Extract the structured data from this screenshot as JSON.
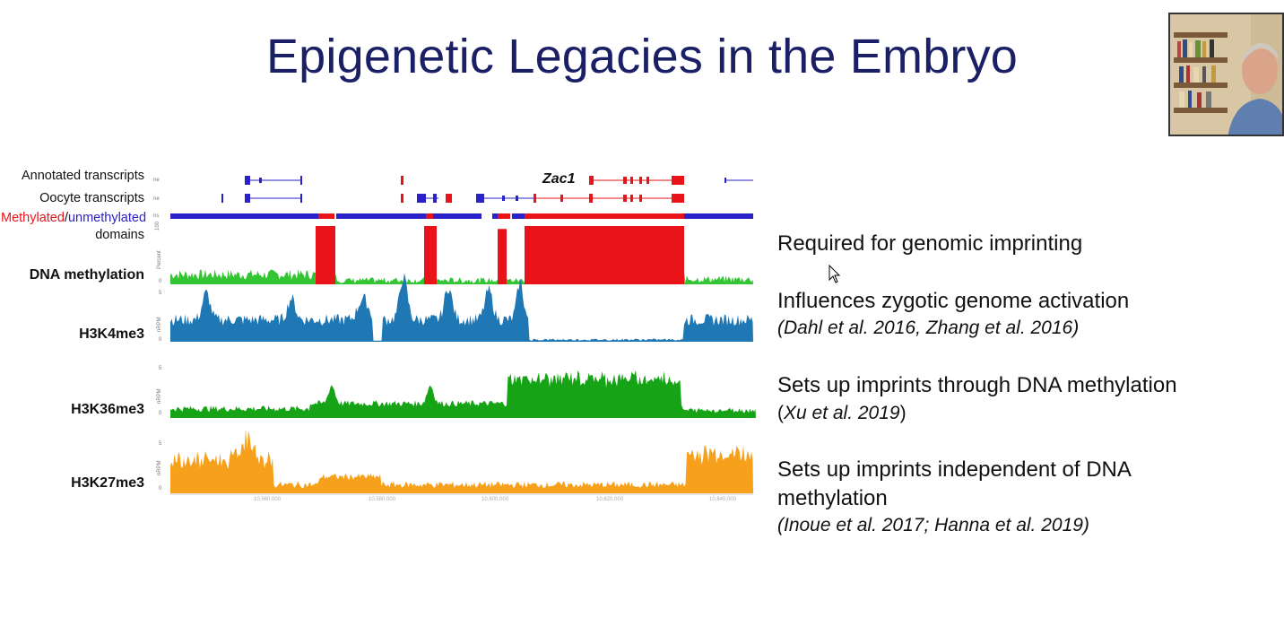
{
  "slide": {
    "title": "Epigenetic Legacies in the Embryo"
  },
  "browser": {
    "gene_label": "Zac1",
    "labels": {
      "annotated": "Annotated transcripts",
      "oocyte": "Oocyte transcripts",
      "meth_domains_red": "Methylated",
      "meth_domains_sep": "/",
      "meth_domains_blue": "unmethylated",
      "meth_domains_2": "domains",
      "dna_meth": "DNA methylation",
      "h3k4": "H3K4me3",
      "h3k36": "H3K36me3",
      "h3k27": "H3K27me3"
    },
    "colors": {
      "methylated": "#e8141a",
      "unmethylated": "#2a22c8",
      "dna_low": "#34c534",
      "h3k4": "#1f77b4",
      "h3k36": "#16a316",
      "h3k27": "#f7a01c"
    }
  },
  "bullets": [
    {
      "text": "Required for genomic imprinting",
      "cite": ""
    },
    {
      "text": "Influences zygotic genome activation",
      "cite": "(Dahl et al. 2016, Zhang et al. 2016)"
    },
    {
      "text": "Sets up imprints through DNA methylation",
      "cite_open": "(",
      "cite": "Xu et al. 2019",
      "cite_close": ")"
    },
    {
      "text": "Sets up imprints independent of DNA",
      "text2": "methylation",
      "cite": "(Inoue et al. 2017; Hanna et al. 2019)"
    }
  ]
}
